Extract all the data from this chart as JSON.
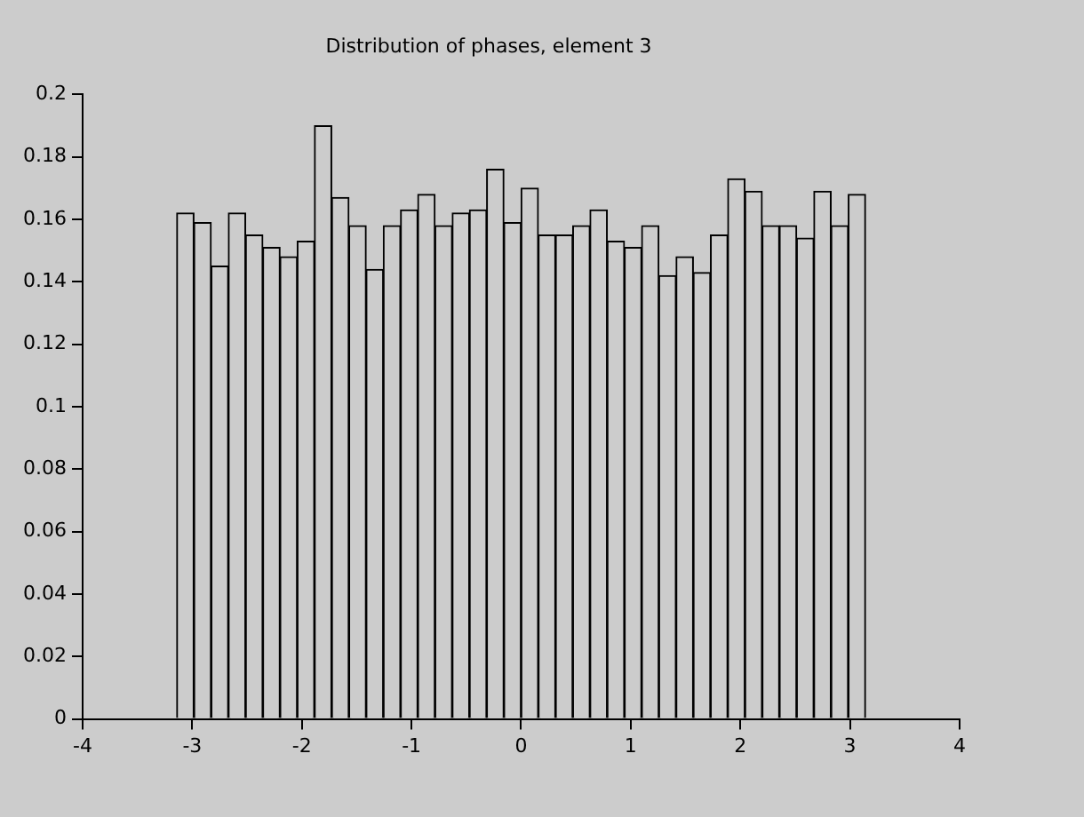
{
  "chart_data": {
    "type": "histogram",
    "title": "Distribution of phases, element 3",
    "bins": [
      -3.1416,
      -2.9845,
      -2.8274,
      -2.6704,
      -2.5133,
      -2.3562,
      -2.1991,
      -2.042,
      -1.885,
      -1.7279,
      -1.5708,
      -1.4137,
      -1.2566,
      -1.0996,
      -0.9425,
      -0.7854,
      -0.6283,
      -0.4712,
      -0.3142,
      -0.1571,
      0,
      0.1571,
      0.3142,
      0.4712,
      0.6283,
      0.7854,
      0.9425,
      1.0996,
      1.2566,
      1.4137,
      1.5708,
      1.7279,
      1.885,
      2.042,
      2.1991,
      2.3562,
      2.5133,
      2.6704,
      2.8274,
      2.9845,
      3.1416
    ],
    "values": [
      0.162,
      0.159,
      0.145,
      0.162,
      0.155,
      0.151,
      0.148,
      0.153,
      0.19,
      0.167,
      0.158,
      0.144,
      0.158,
      0.163,
      0.168,
      0.158,
      0.162,
      0.163,
      0.176,
      0.159,
      0.17,
      0.155,
      0.155,
      0.158,
      0.163,
      0.153,
      0.151,
      0.158,
      0.142,
      0.148,
      0.143,
      0.155,
      0.173,
      0.169,
      0.158,
      0.158,
      0.154,
      0.169,
      0.158,
      0.168
    ],
    "color": "#cccccc",
    "xlim": [
      -4,
      4
    ],
    "xticks": [
      -4,
      -3,
      -2,
      -1,
      0,
      1,
      2,
      3,
      4
    ],
    "ylim": [
      0,
      0.2
    ],
    "yticks": [
      0,
      0.02,
      0.04,
      0.06,
      0.08,
      0.1,
      0.12,
      0.14,
      0.16,
      0.18,
      0.2
    ],
    "grid": false,
    "legend": false
  }
}
